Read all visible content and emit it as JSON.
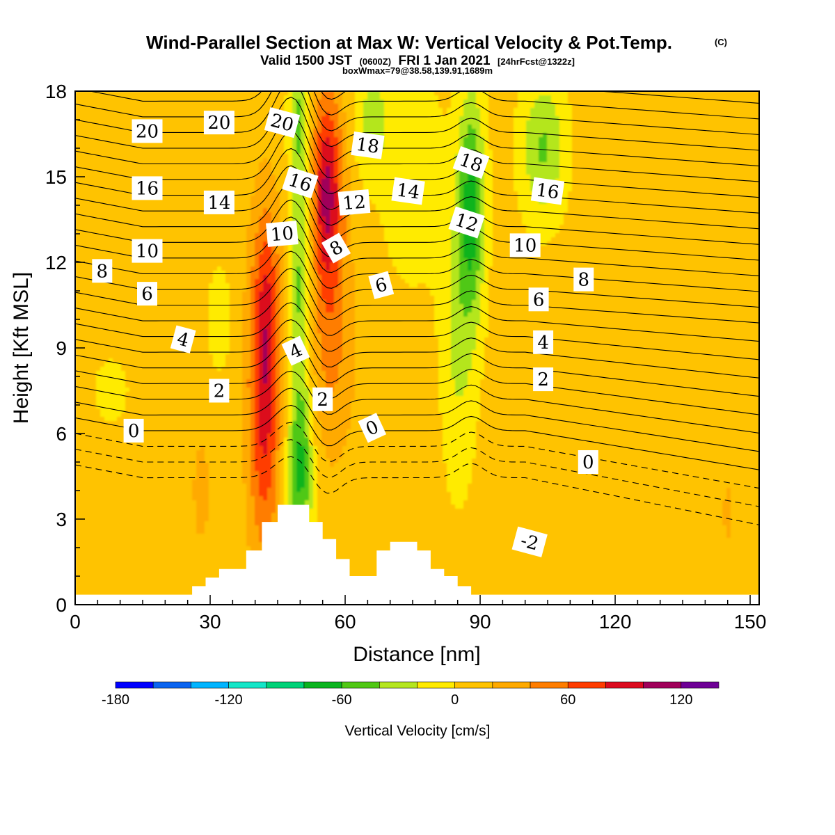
{
  "chart_data": {
    "type": "heatmap",
    "title": "Wind-Parallel Section at Max W: Vertical Velocity & Pot.Temp.",
    "title_mark": "(C)",
    "subtitle_parts": [
      "Valid 1500 JST",
      "(0600Z)",
      "FRI 1 Jan 2021",
      "[24hrFcst@1322z]"
    ],
    "subtitle2": "boxWmax=79@38.58,139.91,1689m",
    "xlabel": "Distance [nm]",
    "ylabel": "Height [Kft MSL]",
    "xlim": [
      0,
      152
    ],
    "ylim": [
      0,
      18
    ],
    "x_ticks": [
      0,
      30,
      60,
      90,
      120,
      150
    ],
    "y_ticks": [
      0,
      3,
      6,
      9,
      12,
      15,
      18
    ],
    "grid": false,
    "colorbar": {
      "title": "Vertical Velocity [cm/s]",
      "ticks": [
        -180,
        -120,
        -60,
        0,
        60,
        120
      ],
      "bins": [
        {
          "lo": -180,
          "hi": -160,
          "color": "#0000ff"
        },
        {
          "lo": -160,
          "hi": -140,
          "color": "#0a64f0"
        },
        {
          "lo": -140,
          "hi": -120,
          "color": "#00b4ff"
        },
        {
          "lo": -120,
          "hi": -100,
          "color": "#14e6c8"
        },
        {
          "lo": -100,
          "hi": -80,
          "color": "#00d278"
        },
        {
          "lo": -80,
          "hi": -60,
          "color": "#0ab41e"
        },
        {
          "lo": -60,
          "hi": -40,
          "color": "#50c814"
        },
        {
          "lo": -40,
          "hi": -20,
          "color": "#b4e61e"
        },
        {
          "lo": -20,
          "hi": 0,
          "color": "#ffeb00"
        },
        {
          "lo": 0,
          "hi": 20,
          "color": "#ffc300"
        },
        {
          "lo": 20,
          "hi": 40,
          "color": "#ffaa00"
        },
        {
          "lo": 40,
          "hi": 60,
          "color": "#ff7d00"
        },
        {
          "lo": 60,
          "hi": 80,
          "color": "#ff3c00"
        },
        {
          "lo": 80,
          "hi": 100,
          "color": "#dc0a1e"
        },
        {
          "lo": 100,
          "hi": 120,
          "color": "#a0005a"
        },
        {
          "lo": 120,
          "hi": 140,
          "color": "#6e0096"
        }
      ]
    },
    "vertical_velocity_features": [
      {
        "x": 42,
        "y": 7.5,
        "sx": 3.5,
        "sy": 5.5,
        "w": 85
      },
      {
        "x": 43,
        "y": 11,
        "sx": 3,
        "sy": 3,
        "w": 25
      },
      {
        "x": 56,
        "y": 14.5,
        "sx": 3.5,
        "sy": 3.5,
        "w": 95
      },
      {
        "x": 57,
        "y": 9,
        "sx": 5,
        "sy": 4,
        "w": 35
      },
      {
        "x": 50,
        "y": 11,
        "sx": 2.5,
        "sy": 6,
        "w": -55
      },
      {
        "x": 50,
        "y": 4.5,
        "sx": 3,
        "sy": 2.5,
        "w": -60
      },
      {
        "x": 49.5,
        "y": 17,
        "sx": 2,
        "sy": 1.6,
        "w": -40
      },
      {
        "x": 88,
        "y": 14,
        "sx": 3,
        "sy": 4,
        "w": -75
      },
      {
        "x": 85,
        "y": 9,
        "sx": 4,
        "sy": 5,
        "w": -30
      },
      {
        "x": 104,
        "y": 16,
        "sx": 5,
        "sy": 2.5,
        "w": -50
      },
      {
        "x": 75,
        "y": 15,
        "sx": 7,
        "sy": 4,
        "w": -22
      },
      {
        "x": 66,
        "y": 17,
        "sx": 4,
        "sy": 2,
        "w": -35
      },
      {
        "x": 125,
        "y": 11,
        "sx": 9,
        "sy": 6,
        "w": 12
      },
      {
        "x": 140,
        "y": 6,
        "sx": 10,
        "sy": 2,
        "w": 10
      },
      {
        "x": 105,
        "y": 2,
        "sx": 8,
        "sy": 1.8,
        "w": 12
      },
      {
        "x": 75,
        "y": 5,
        "sx": 5,
        "sy": 4,
        "w": 10
      },
      {
        "x": 28,
        "y": 4,
        "sx": 2.5,
        "sy": 2.5,
        "w": 18
      },
      {
        "x": 8,
        "y": 7.5,
        "sx": 4,
        "sy": 1.2,
        "w": -18
      },
      {
        "x": 145,
        "y": 3,
        "sx": 1.5,
        "sy": 1.5,
        "w": 15
      },
      {
        "x": 32,
        "y": 10,
        "sx": 3,
        "sy": 2,
        "w": -18
      }
    ],
    "theta_labels": [
      {
        "text": "20",
        "x": 16,
        "y": 16.6,
        "angle": 0
      },
      {
        "text": "20",
        "x": 32,
        "y": 16.9,
        "angle": 0
      },
      {
        "text": "20",
        "x": 46,
        "y": 16.9,
        "angle": 15
      },
      {
        "text": "18",
        "x": 65,
        "y": 16.1,
        "angle": 8
      },
      {
        "text": "18",
        "x": 88,
        "y": 15.5,
        "angle": 20
      },
      {
        "text": "16",
        "x": 16,
        "y": 14.6,
        "angle": 0
      },
      {
        "text": "16",
        "x": 50,
        "y": 14.8,
        "angle": 18
      },
      {
        "text": "16",
        "x": 105,
        "y": 14.5,
        "angle": 8
      },
      {
        "text": "14",
        "x": 32,
        "y": 14.1,
        "angle": 0
      },
      {
        "text": "14",
        "x": 74,
        "y": 14.5,
        "angle": 8
      },
      {
        "text": "12",
        "x": 62,
        "y": 14.1,
        "angle": -5
      },
      {
        "text": "12",
        "x": 87,
        "y": 13.4,
        "angle": 18
      },
      {
        "text": "10",
        "x": 16,
        "y": 12.4,
        "angle": 0
      },
      {
        "text": "10",
        "x": 46,
        "y": 13.0,
        "angle": -5
      },
      {
        "text": "10",
        "x": 100,
        "y": 12.6,
        "angle": 0
      },
      {
        "text": "8",
        "x": 6,
        "y": 11.7,
        "angle": 0
      },
      {
        "text": "8",
        "x": 58,
        "y": 12.5,
        "angle": -30
      },
      {
        "text": "8",
        "x": 113,
        "y": 11.4,
        "angle": 0
      },
      {
        "text": "6",
        "x": 16,
        "y": 10.9,
        "angle": 0
      },
      {
        "text": "6",
        "x": 68,
        "y": 11.2,
        "angle": -15
      },
      {
        "text": "6",
        "x": 103,
        "y": 10.7,
        "angle": 0
      },
      {
        "text": "4",
        "x": 24,
        "y": 9.3,
        "angle": 15
      },
      {
        "text": "4",
        "x": 49,
        "y": 8.9,
        "angle": -25
      },
      {
        "text": "4",
        "x": 104,
        "y": 9.2,
        "angle": 0
      },
      {
        "text": "2",
        "x": 32,
        "y": 7.5,
        "angle": 0
      },
      {
        "text": "2",
        "x": 55,
        "y": 7.2,
        "angle": 0
      },
      {
        "text": "2",
        "x": 104,
        "y": 7.9,
        "angle": 0
      },
      {
        "text": "0",
        "x": 13,
        "y": 6.1,
        "angle": 0
      },
      {
        "text": "0",
        "x": 66,
        "y": 6.2,
        "angle": -25
      },
      {
        "text": "0",
        "x": 114,
        "y": 5.0,
        "angle": 0
      },
      {
        "text": "-2",
        "x": 101,
        "y": 2.2,
        "angle": 15
      }
    ]
  }
}
